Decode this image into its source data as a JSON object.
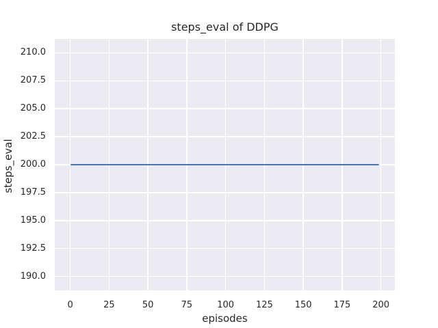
{
  "colors": {
    "line": "#4c72b0",
    "axes_background": "#eaeaf2",
    "grid": "#ffffff",
    "text": "#262626",
    "figure_background": "#ffffff"
  },
  "chart_data": {
    "type": "line",
    "title": "steps_eval of DDPG",
    "xlabel": "episodes",
    "ylabel": "steps_eval",
    "xlim": [
      -9.95,
      208.95
    ],
    "ylim": [
      188.75,
      211.25
    ],
    "xticks": [
      0,
      25,
      50,
      75,
      100,
      125,
      150,
      175,
      200
    ],
    "xticklabels": [
      "0",
      "25",
      "50",
      "75",
      "100",
      "125",
      "150",
      "175",
      "200"
    ],
    "yticks": [
      190.0,
      192.5,
      195.0,
      197.5,
      200.0,
      202.5,
      205.0,
      207.5,
      210.0
    ],
    "yticklabels": [
      "190.0",
      "192.5",
      "195.0",
      "197.5",
      "200.0",
      "202.5",
      "205.0",
      "207.5",
      "210.0"
    ],
    "grid": true,
    "legend": false,
    "series": [
      {
        "name": "DDPG",
        "color": "#4c72b0",
        "x_start": 0,
        "x_end": 199,
        "y_constant": 200,
        "points": [
          [
            0,
            200
          ],
          [
            199,
            200
          ]
        ]
      }
    ]
  }
}
